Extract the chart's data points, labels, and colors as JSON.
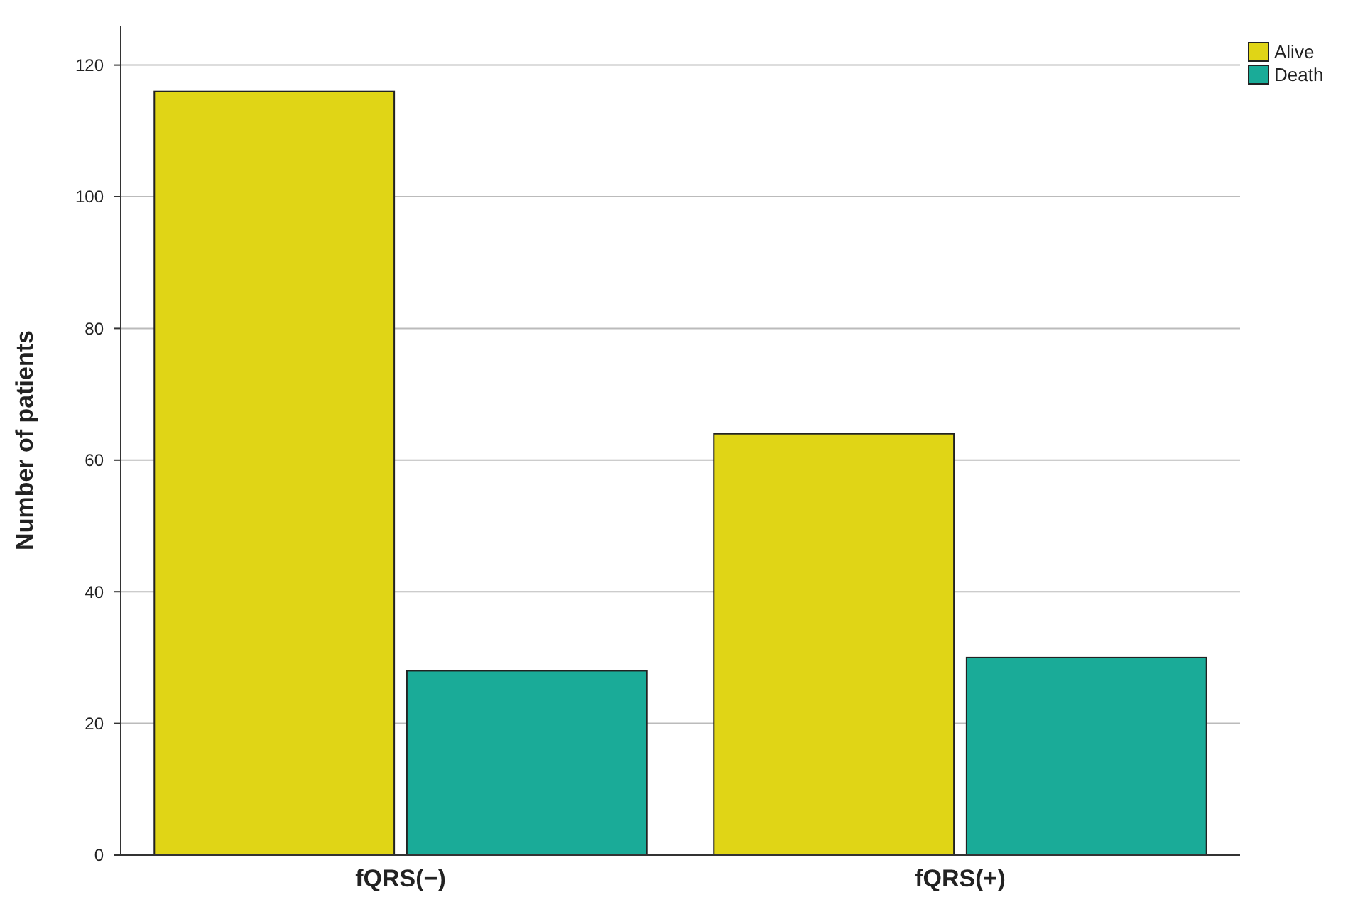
{
  "chart_data": {
    "type": "bar",
    "ylabel": "Number of patients",
    "categories": [
      "fQRS(−)",
      "fQRS(+)"
    ],
    "series": [
      {
        "name": "Alive",
        "color": "#e0d516",
        "values": [
          116,
          64
        ]
      },
      {
        "name": "Death",
        "color": "#1aab98",
        "values": [
          28,
          30
        ]
      }
    ],
    "ylim": [
      0,
      126
    ],
    "yticks": [
      0,
      20,
      40,
      60,
      80,
      100,
      120
    ],
    "grid": "y",
    "legend": "top right"
  }
}
